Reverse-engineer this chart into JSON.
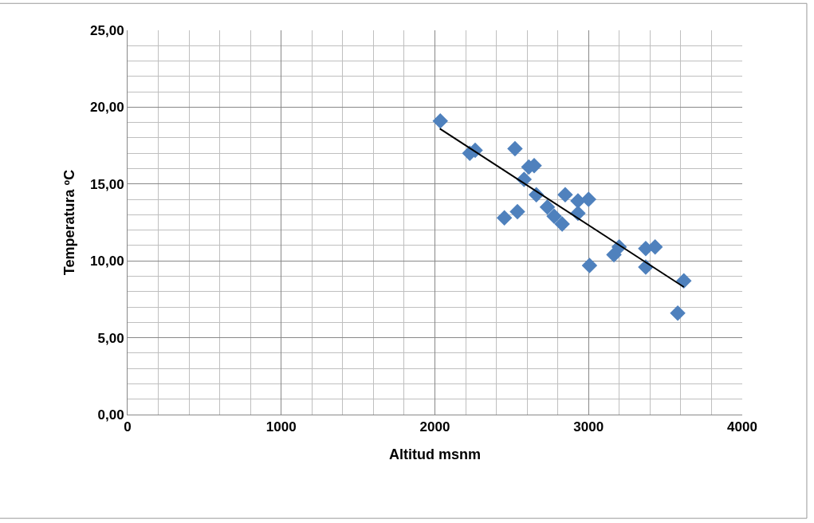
{
  "chart_data": {
    "type": "scatter",
    "xlabel": "Altitud msnm",
    "ylabel": "Temperatura ºC",
    "series": [
      {
        "color": "#4f81bd",
        "marker": "diamond",
        "x": [
          2035,
          2227,
          2262,
          2521,
          2611,
          2646,
          2580,
          2660,
          2452,
          2537,
          2732,
          2776,
          2828,
          2848,
          2931,
          2931,
          3000,
          3006,
          3199,
          3165,
          3372,
          3433,
          3372,
          3620,
          3580
        ],
        "values": [
          19.1,
          17.0,
          17.2,
          17.3,
          16.1,
          16.2,
          15.3,
          14.3,
          12.8,
          13.2,
          13.5,
          12.9,
          12.4,
          14.3,
          13.9,
          13.1,
          14.0,
          9.7,
          10.9,
          10.4,
          10.8,
          10.9,
          9.6,
          8.7,
          6.6
        ]
      },
      {
        "type": "line",
        "color": "#000000",
        "marker": "none",
        "x": [
          2032,
          3620
        ],
        "values": [
          18.6,
          8.3
        ]
      }
    ],
    "xlim": [
      0,
      4000
    ],
    "xticks": [
      0,
      1000,
      2000,
      3000,
      4000
    ],
    "ylim": [
      0,
      25
    ],
    "yticks": [
      {
        "value": 0,
        "label": "0,00"
      },
      {
        "value": 5,
        "label": "5,00"
      },
      {
        "value": 10,
        "label": "10,00"
      },
      {
        "value": 15,
        "label": "15,00"
      },
      {
        "value": 20,
        "label": "20,00"
      },
      {
        "value": 25,
        "label": "25,00"
      }
    ],
    "grid": true
  }
}
